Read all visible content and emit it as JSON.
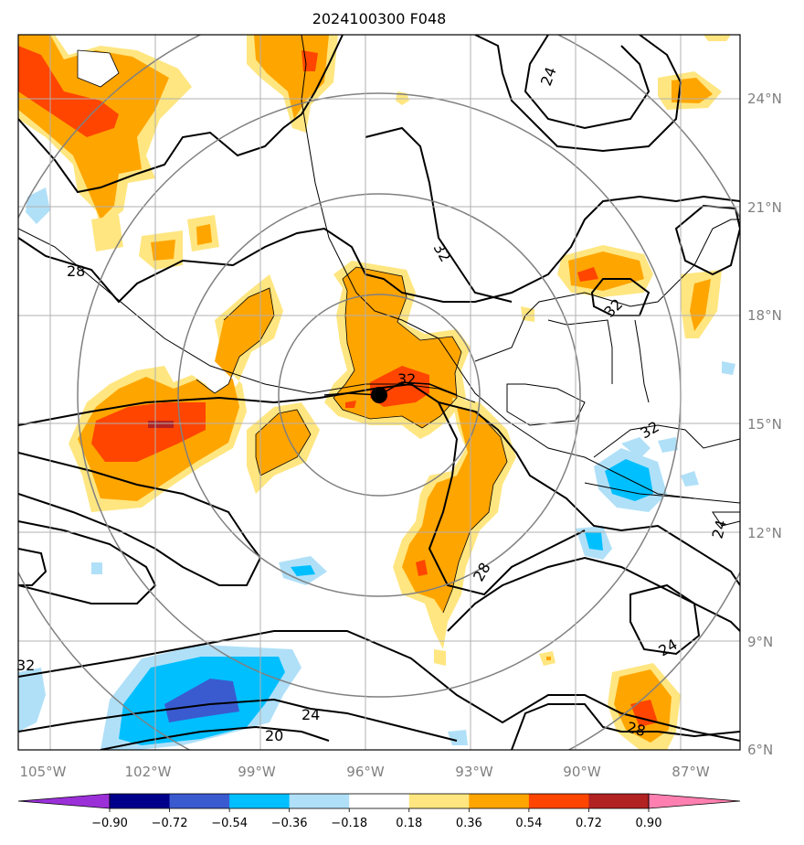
{
  "title": "2024100300 F048",
  "axes": {
    "lon_ticks": [
      "105°W",
      "102°W",
      "99°W",
      "96°W",
      "93°W",
      "90°W",
      "87°W"
    ],
    "lat_ticks": [
      "24°N",
      "21°N",
      "18°N",
      "15°N",
      "12°N",
      "9°N",
      "6°N"
    ]
  },
  "colorbar": {
    "tick_labels": [
      "−0.90",
      "−0.72",
      "−0.54",
      "−0.36",
      "−0.18",
      "0.18",
      "0.36",
      "0.54",
      "0.72",
      "0.90"
    ],
    "colors": [
      "#9b30d9",
      "#00008b",
      "#3a5bd0",
      "#00bfff",
      "#b0e0f8",
      "#ffffff",
      "#ffe680",
      "#ffa500",
      "#ff4500",
      "#b22222",
      "#ff80b0"
    ]
  },
  "contour_labels": [
    "24",
    "32",
    "28",
    "32",
    "32",
    "28",
    "24",
    "32",
    "24",
    "28",
    "24",
    "20",
    "32"
  ],
  "storm": {
    "name": "center-marker"
  }
}
